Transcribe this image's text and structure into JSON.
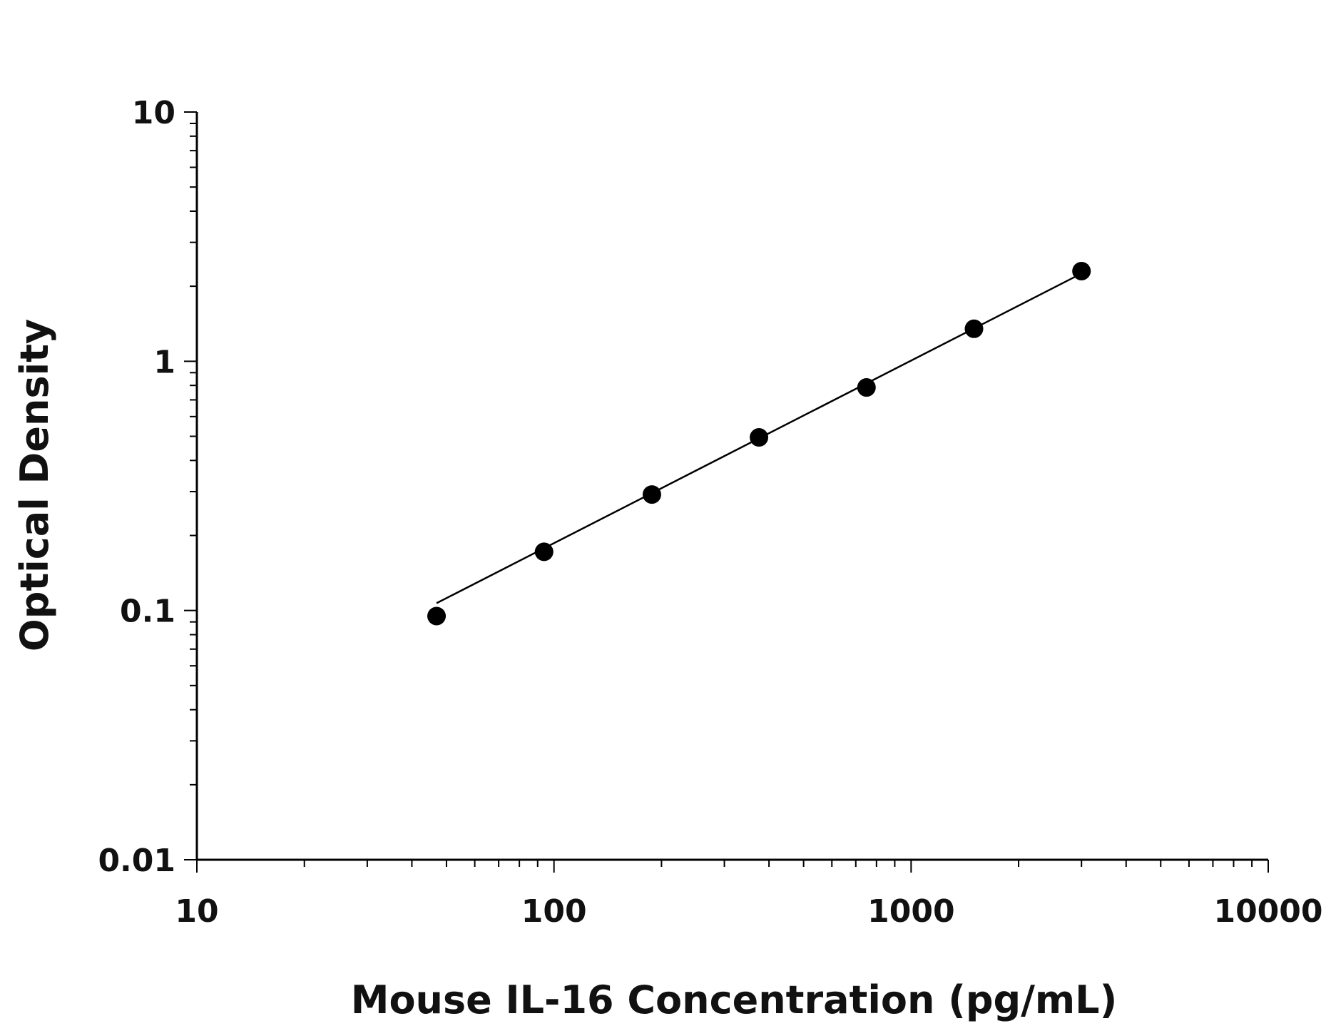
{
  "chart_data": {
    "type": "scatter",
    "title": "",
    "xlabel": "Mouse IL-16 Concentration (pg/mL)",
    "ylabel": "Optical Density",
    "x_scale": "log",
    "y_scale": "log",
    "xlim": [
      10,
      10000
    ],
    "ylim": [
      0.01,
      10
    ],
    "grid": false,
    "legend": "none",
    "x_ticks": [
      {
        "value": 10,
        "label": "10"
      },
      {
        "value": 100,
        "label": "100"
      },
      {
        "value": 1000,
        "label": "1000"
      },
      {
        "value": 10000,
        "label": "10000"
      }
    ],
    "y_ticks": [
      {
        "value": 0.01,
        "label": "0.01"
      },
      {
        "value": 0.1,
        "label": "0.1"
      },
      {
        "value": 1,
        "label": "1"
      },
      {
        "value": 10,
        "label": "10"
      }
    ],
    "series": [
      {
        "points": [
          {
            "x": 46.9,
            "y": 0.095
          },
          {
            "x": 93.8,
            "y": 0.172
          },
          {
            "x": 188,
            "y": 0.292
          },
          {
            "x": 375,
            "y": 0.495
          },
          {
            "x": 750,
            "y": 0.785
          },
          {
            "x": 1500,
            "y": 1.35
          },
          {
            "x": 3000,
            "y": 2.3
          }
        ]
      }
    ],
    "fit_line": {
      "x": [
        46.9,
        3000
      ],
      "y": [
        0.107,
        2.25
      ]
    },
    "colors": {
      "points": "#000000",
      "line": "#000000",
      "axis": "#000000"
    }
  }
}
